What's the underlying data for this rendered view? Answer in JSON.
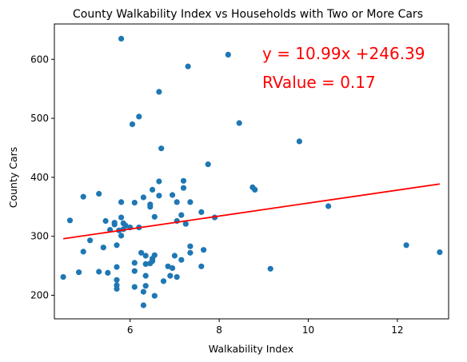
{
  "chart_data": {
    "type": "scatter",
    "title": "County Walkability Index vs Households with Two or More Cars",
    "xlabel": "Walkability Index",
    "ylabel": "County Cars",
    "xlim": [
      4.3,
      13.15
    ],
    "ylim": [
      160,
      660
    ],
    "xticks": [
      6,
      8,
      10,
      12
    ],
    "yticks": [
      200,
      300,
      400,
      500,
      600
    ],
    "grid": false,
    "marker_color": "#1f77b4",
    "regression": {
      "slope": 10.99,
      "intercept": 246.39,
      "x_range": [
        4.5,
        12.95
      ],
      "color": "#ff0000",
      "equation_label": "y = 10.99x +246.39",
      "rvalue_label": "RValue = 0.17"
    },
    "points": [
      [
        5.8,
        635
      ],
      [
        7.3,
        588
      ],
      [
        8.2,
        608
      ],
      [
        6.65,
        545
      ],
      [
        6.2,
        503
      ],
      [
        6.05,
        490
      ],
      [
        8.45,
        492
      ],
      [
        9.8,
        461
      ],
      [
        6.7,
        449
      ],
      [
        7.75,
        422
      ],
      [
        6.65,
        393
      ],
      [
        7.2,
        394
      ],
      [
        7.2,
        382
      ],
      [
        8.75,
        383
      ],
      [
        8.8,
        379
      ],
      [
        6.3,
        366
      ],
      [
        6.5,
        379
      ],
      [
        6.65,
        369
      ],
      [
        6.95,
        370
      ],
      [
        7.05,
        358
      ],
      [
        7.35,
        358
      ],
      [
        6.45,
        354
      ],
      [
        6.45,
        350
      ],
      [
        5.8,
        358
      ],
      [
        6.1,
        357
      ],
      [
        4.95,
        367
      ],
      [
        5.3,
        372
      ],
      [
        4.65,
        327
      ],
      [
        5.45,
        326
      ],
      [
        5.65,
        320
      ],
      [
        5.65,
        323
      ],
      [
        5.8,
        332
      ],
      [
        5.85,
        322
      ],
      [
        5.55,
        311
      ],
      [
        5.85,
        312
      ],
      [
        5.9,
        318
      ],
      [
        6.0,
        315
      ],
      [
        6.2,
        315
      ],
      [
        5.75,
        310
      ],
      [
        5.8,
        301
      ],
      [
        6.55,
        333
      ],
      [
        7.15,
        336
      ],
      [
        7.05,
        326
      ],
      [
        7.25,
        321
      ],
      [
        7.6,
        341
      ],
      [
        7.9,
        332
      ],
      [
        10.45,
        351
      ],
      [
        5.1,
        293
      ],
      [
        4.95,
        274
      ],
      [
        5.4,
        281
      ],
      [
        5.7,
        285
      ],
      [
        6.25,
        272
      ],
      [
        6.35,
        267
      ],
      [
        6.5,
        262
      ],
      [
        6.5,
        258
      ],
      [
        6.55,
        268
      ],
      [
        6.45,
        254
      ],
      [
        6.35,
        253
      ],
      [
        6.1,
        255
      ],
      [
        7.0,
        267
      ],
      [
        7.35,
        283
      ],
      [
        7.35,
        272
      ],
      [
        7.65,
        277
      ],
      [
        7.15,
        260
      ],
      [
        7.6,
        249
      ],
      [
        9.15,
        245
      ],
      [
        6.85,
        249
      ],
      [
        6.95,
        246
      ],
      [
        5.3,
        240
      ],
      [
        5.5,
        238
      ],
      [
        4.85,
        239
      ],
      [
        5.7,
        248
      ],
      [
        6.1,
        241
      ],
      [
        6.35,
        233
      ],
      [
        6.9,
        233
      ],
      [
        7.05,
        231
      ],
      [
        6.75,
        224
      ],
      [
        5.7,
        226
      ],
      [
        5.7,
        217
      ],
      [
        5.7,
        211
      ],
      [
        6.1,
        214
      ],
      [
        6.35,
        216
      ],
      [
        6.3,
        206
      ],
      [
        6.55,
        199
      ],
      [
        6.3,
        183
      ],
      [
        4.5,
        231
      ],
      [
        12.2,
        285
      ],
      [
        12.95,
        273
      ]
    ]
  }
}
